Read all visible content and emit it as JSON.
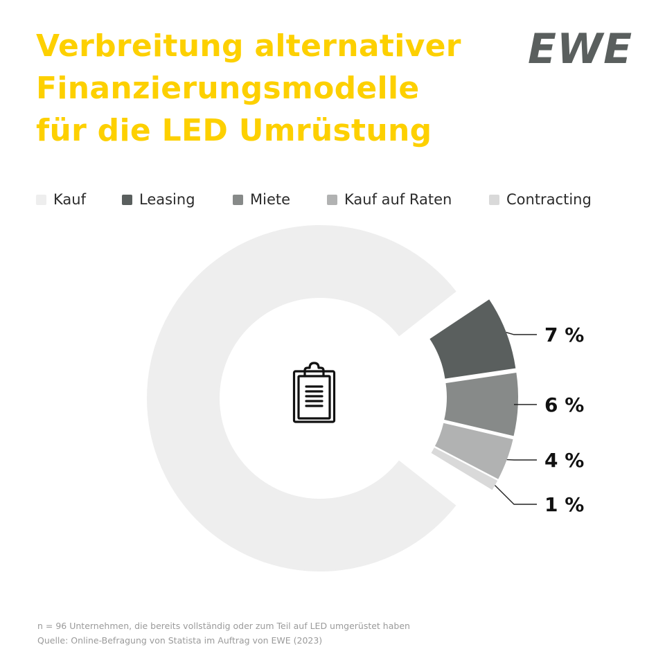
{
  "header": {
    "title_lines": [
      "Verbreitung alternativer",
      "Finanzierungsmodelle",
      "für die LED Umrüstung"
    ],
    "logo_text": "EWE"
  },
  "colors": {
    "title": "#fdd000",
    "logo": "#5a5f5e",
    "label": "#111111",
    "leader": "#222222",
    "icon": "#111111"
  },
  "center_icon": "clipboard-icon",
  "chart_data": {
    "type": "pie",
    "variant": "donut",
    "title": "Verbreitung alternativer Finanzierungsmodelle für die LED Umrüstung",
    "legend_position": "top",
    "slices": [
      {
        "name": "Kauf",
        "value": 82,
        "color": "#eeeeee",
        "label": "",
        "exploded": false
      },
      {
        "name": "Leasing",
        "value": 7,
        "color": "#5a5f5e",
        "label": "7 %",
        "exploded": true
      },
      {
        "name": "Miete",
        "value": 6,
        "color": "#878a89",
        "label": "6 %",
        "exploded": true
      },
      {
        "name": "Kauf auf Raten",
        "value": 4,
        "color": "#b1b2b2",
        "label": "4 %",
        "exploded": true
      },
      {
        "name": "Contracting",
        "value": 1,
        "color": "#d9d9d9",
        "label": "1 %",
        "exploded": true
      }
    ]
  },
  "footnote": {
    "line1": "n = 96 Unternehmen, die bereits vollständig oder zum Teil auf LED umgerüstet haben",
    "line2": "Quelle: Online-Befragung von Statista im Auftrag von EWE (2023)"
  }
}
